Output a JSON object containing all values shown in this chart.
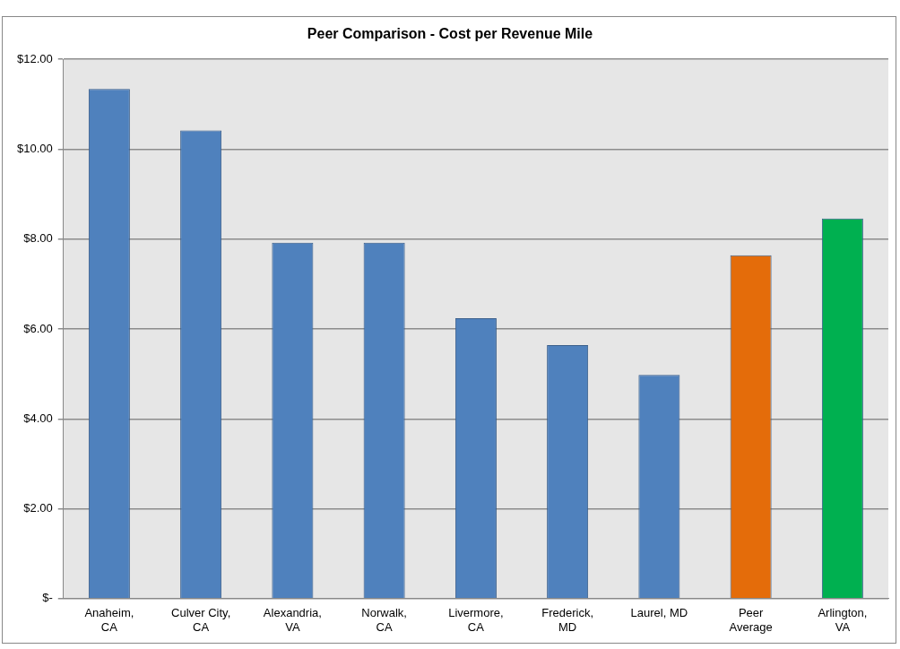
{
  "chart_data": {
    "type": "bar",
    "title": "Peer Comparison - Cost per Revenue Mile",
    "categories": [
      [
        "Anaheim,",
        "CA"
      ],
      [
        "Culver City,",
        "CA"
      ],
      [
        "Alexandria,",
        "VA"
      ],
      [
        "Norwalk,",
        "CA"
      ],
      [
        "Livermore,",
        "CA"
      ],
      [
        "Frederick,",
        "MD"
      ],
      "Laurel, MD",
      [
        "Peer",
        "Average"
      ],
      [
        "Arlington,",
        "VA"
      ]
    ],
    "values": [
      11.34,
      10.42,
      7.92,
      7.92,
      6.24,
      5.64,
      4.98,
      7.64,
      8.46
    ],
    "colors": [
      "#4f81bd",
      "#4f81bd",
      "#4f81bd",
      "#4f81bd",
      "#4f81bd",
      "#4f81bd",
      "#4f81bd",
      "#e46c0a",
      "#00b050"
    ],
    "ylim": [
      0,
      12
    ],
    "yticks": [
      {
        "value": 0,
        "label": "$-"
      },
      {
        "value": 2,
        "label": "$2.00"
      },
      {
        "value": 4,
        "label": "$4.00"
      },
      {
        "value": 6,
        "label": "$6.00"
      },
      {
        "value": 8,
        "label": "$8.00"
      },
      {
        "value": 10,
        "label": "$10.00"
      },
      {
        "value": 12,
        "label": "$12.00"
      }
    ],
    "grid": "y",
    "legend": false
  }
}
